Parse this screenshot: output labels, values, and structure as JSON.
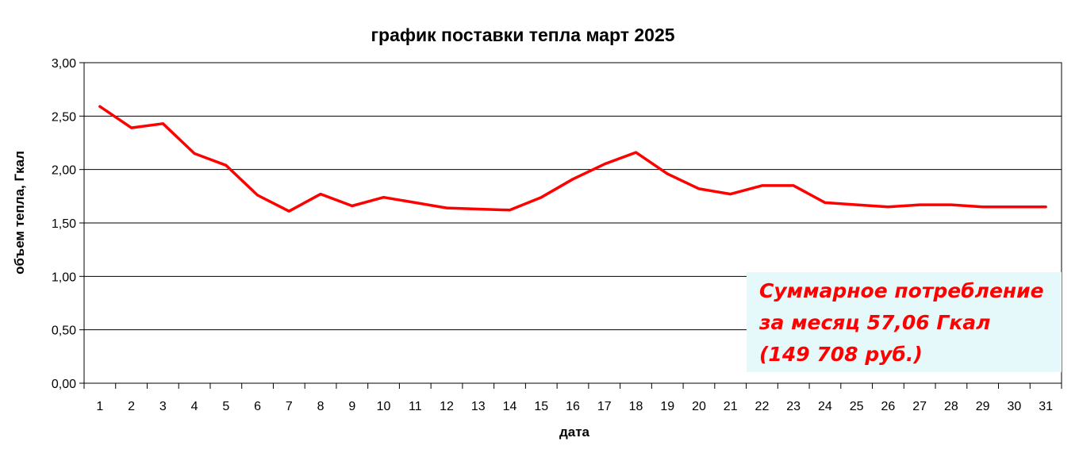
{
  "chart_data": {
    "type": "line",
    "title": "график поставки тепла март 2025",
    "xlabel": "дата",
    "ylabel": "объем тепла, Гкал",
    "categories": [
      "1",
      "2",
      "3",
      "4",
      "5",
      "6",
      "7",
      "8",
      "9",
      "10",
      "11",
      "12",
      "13",
      "14",
      "15",
      "16",
      "17",
      "18",
      "19",
      "20",
      "21",
      "22",
      "23",
      "24",
      "25",
      "26",
      "27",
      "28",
      "29",
      "30",
      "31"
    ],
    "y_tick_labels": [
      "0,00",
      "0,50",
      "1,00",
      "1,50",
      "2,00",
      "2,50",
      "3,00"
    ],
    "y_ticks": [
      0,
      0.5,
      1.0,
      1.5,
      2.0,
      2.5,
      3.0
    ],
    "ylim": [
      0,
      3.0
    ],
    "grid": "horizontal",
    "series": [
      {
        "color": "#ff0000",
        "values": [
          2.59,
          2.39,
          2.43,
          2.15,
          2.04,
          1.76,
          1.61,
          1.77,
          1.66,
          1.74,
          1.69,
          1.64,
          1.63,
          1.62,
          1.74,
          1.91,
          2.05,
          2.16,
          1.96,
          1.82,
          1.77,
          1.85,
          1.85,
          1.69,
          1.67,
          1.65,
          1.67,
          1.67,
          1.65,
          1.65,
          1.65
        ]
      }
    ]
  },
  "annotation": {
    "line1": "Суммарное потребление",
    "line2": "за месяц 57,06 Гкал",
    "line3": "(149 708 руб.)",
    "text_color": "#ff0000",
    "background": "#e5f9fb"
  }
}
